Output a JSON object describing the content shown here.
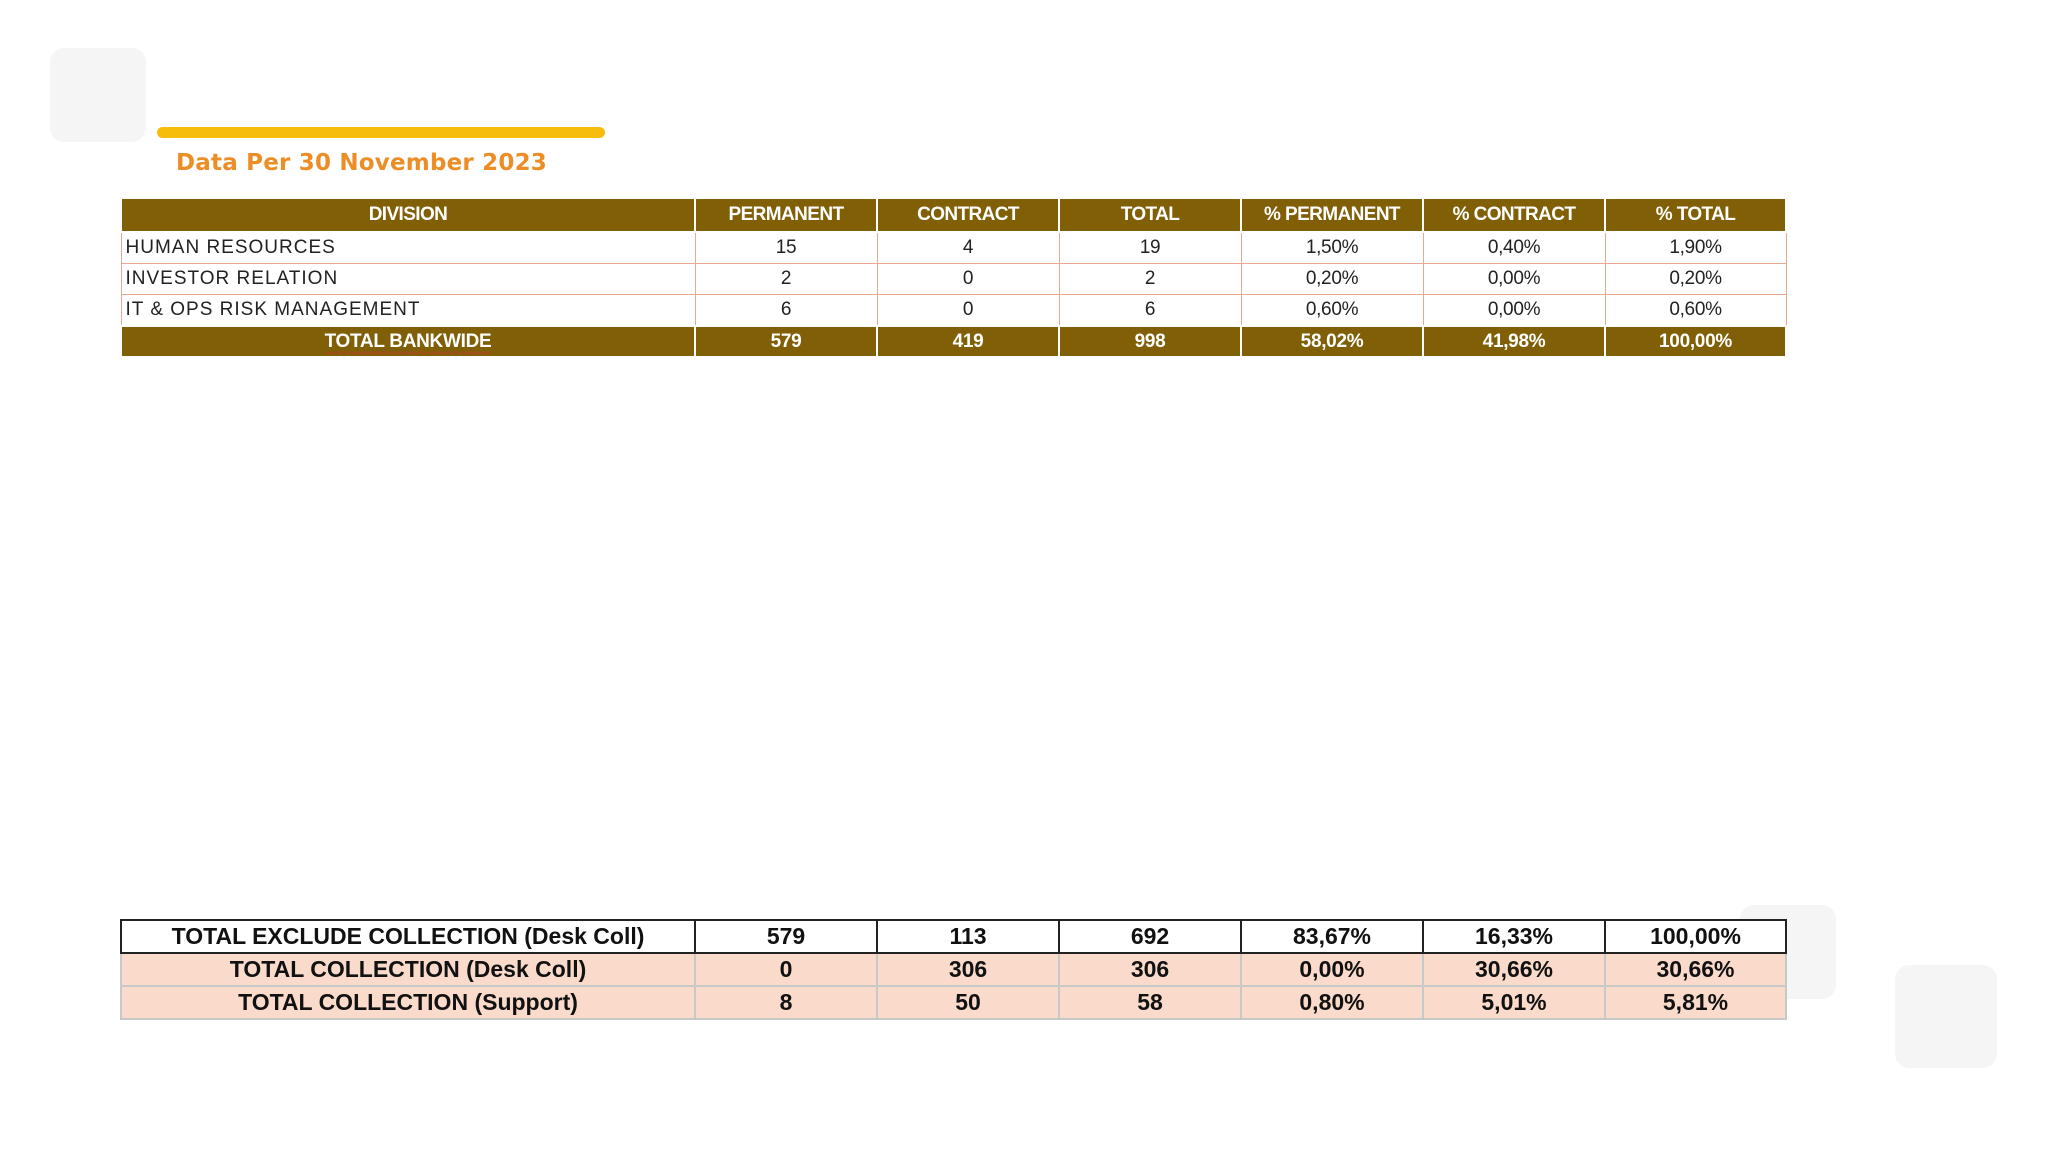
{
  "subtitle": "Data Per 30 November 2023",
  "colors": {
    "accent_bar": "#f6bd0c",
    "subtitle": "#ec8d26",
    "header_bg": "#805f06",
    "peach_row": "#fadbcb"
  },
  "top_table": {
    "headers": [
      "DIVISION",
      "PERMANENT",
      "CONTRACT",
      "TOTAL",
      "% PERMANENT",
      "% CONTRACT",
      "% TOTAL"
    ],
    "rows": [
      [
        "HUMAN RESOURCES",
        "15",
        "4",
        "19",
        "1,50%",
        "0,40%",
        "1,90%"
      ],
      [
        "INVESTOR RELATION",
        "2",
        "0",
        "2",
        "0,20%",
        "0,00%",
        "0,20%"
      ],
      [
        "IT & OPS RISK MANAGEMENT",
        "6",
        "0",
        "6",
        "0,60%",
        "0,00%",
        "0,60%"
      ]
    ],
    "total": [
      "TOTAL BANKWIDE",
      "579",
      "419",
      "998",
      "58,02%",
      "41,98%",
      "100,00%"
    ]
  },
  "bottom_table": {
    "rows": [
      [
        "TOTAL EXCLUDE COLLECTION (Desk Coll)",
        "579",
        "113",
        "692",
        "83,67%",
        "16,33%",
        "100,00%"
      ],
      [
        "TOTAL COLLECTION (Desk Coll)",
        "0",
        "306",
        "306",
        "0,00%",
        "30,66%",
        "30,66%"
      ],
      [
        "TOTAL COLLECTION (Support)",
        "8",
        "50",
        "58",
        "0,80%",
        "5,01%",
        "5,81%"
      ]
    ]
  }
}
